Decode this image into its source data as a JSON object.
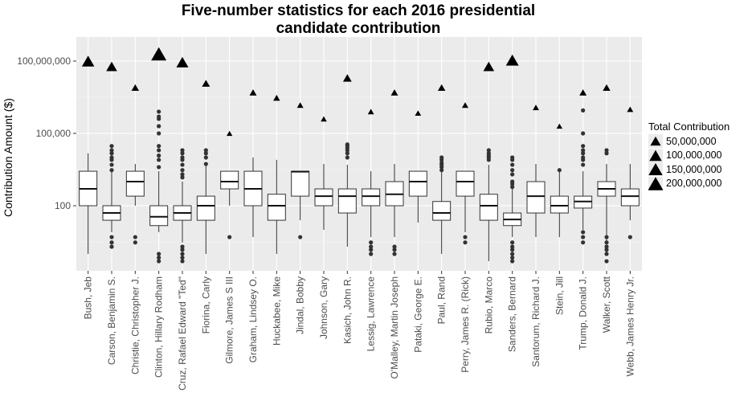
{
  "chart_data": {
    "type": "box",
    "title_line1": "Five-number statistics for each 2016 presidential",
    "title_line2": "candidate contribution",
    "xlabel": "",
    "ylabel": "Contribution Amount ($)",
    "y_scale": "log10",
    "y_ticks": [
      100,
      100000,
      100000000
    ],
    "y_tick_labels": [
      "100",
      "100,000",
      "100,000,000"
    ],
    "ylim": [
      0.2,
      1000000000
    ],
    "legend": {
      "title": "Total Contribution",
      "placement": "right",
      "entries": [
        {
          "label": "50,000,000",
          "value": 50000000
        },
        {
          "label": "100,000,000",
          "value": 100000000
        },
        {
          "label": "150,000,000",
          "value": 150000000
        },
        {
          "label": "200,000,000",
          "value": 200000000
        }
      ]
    },
    "candidates": [
      {
        "name": "Bush, Jeb",
        "min": 1,
        "q1": 100,
        "median": 500,
        "q3": 2700,
        "max": 15000,
        "outliers": [],
        "total": 100000000
      },
      {
        "name": "Carson, Benjamin S.",
        "min": 8,
        "q1": 25,
        "median": 50,
        "q3": 100,
        "max": 2700,
        "outliers": [
          2,
          3,
          5,
          3000,
          5000,
          8000,
          10000,
          15000,
          20000,
          30000
        ],
        "total": 60000000
      },
      {
        "name": "Christie, Christopher J.",
        "min": 100,
        "q1": 250,
        "median": 1000,
        "q3": 2700,
        "max": 5400,
        "outliers": [
          3,
          5
        ],
        "total": 8000000
      },
      {
        "name": "Clinton, Hillary Rodham",
        "min": 8,
        "q1": 15,
        "median": 35,
        "q3": 100,
        "max": 2700,
        "outliers": [
          0.5,
          0.7,
          1,
          4000,
          8000,
          12000,
          20000,
          30000,
          100000,
          200000,
          400000,
          500000,
          800000
        ],
        "total": 200000000
      },
      {
        "name": "Cruz, Rafael Edward \"Ted\"",
        "min": 3,
        "q1": 25,
        "median": 50,
        "q3": 100,
        "max": 1000,
        "outliers": [
          0.5,
          0.7,
          1,
          1.5,
          2,
          1500,
          2000,
          3000,
          5000,
          8000,
          10000,
          15000,
          20000
        ],
        "total": 90000000
      },
      {
        "name": "Fiorina, Carly",
        "min": 1,
        "q1": 25,
        "median": 100,
        "q3": 250,
        "max": 5000,
        "outliers": [
          5400,
          10000,
          15000,
          20000
        ],
        "total": 12000000
      },
      {
        "name": "Gilmore, James S III",
        "min": 100,
        "q1": 500,
        "median": 1000,
        "q3": 2700,
        "max": 2700,
        "outliers": [
          5
        ],
        "total": 100000
      },
      {
        "name": "Graham, Lindsey O.",
        "min": 5,
        "q1": 100,
        "median": 500,
        "q3": 2700,
        "max": 10000,
        "outliers": [],
        "total": 5000000
      },
      {
        "name": "Huckabee, Mike",
        "min": 1,
        "q1": 25,
        "median": 100,
        "q3": 300,
        "max": 8000,
        "outliers": [],
        "total": 3000000
      },
      {
        "name": "Jindal, Bobby",
        "min": 25,
        "q1": 250,
        "median": 2600,
        "q3": 2700,
        "max": 2700,
        "outliers": [
          5
        ],
        "total": 1500000
      },
      {
        "name": "Johnson, Gary",
        "min": 10,
        "q1": 100,
        "median": 250,
        "q3": 500,
        "max": 5400,
        "outliers": [],
        "total": 400000
      },
      {
        "name": "Kasich, John R.",
        "min": 2,
        "q1": 50,
        "median": 250,
        "q3": 500,
        "max": 5000,
        "outliers": [
          10000,
          15000,
          20000,
          25000,
          30000,
          35000
        ],
        "total": 20000000
      },
      {
        "name": "Lessig, Lawrence",
        "min": 5,
        "q1": 100,
        "median": 250,
        "q3": 500,
        "max": 2700,
        "outliers": [
          1,
          1.5,
          2,
          3
        ],
        "total": 800000
      },
      {
        "name": "O'Malley, Martin Joseph",
        "min": 5,
        "q1": 100,
        "median": 300,
        "q3": 1000,
        "max": 5400,
        "outliers": [
          1,
          1.5,
          2
        ],
        "total": 5000000
      },
      {
        "name": "Pataki, George E.",
        "min": 20,
        "q1": 250,
        "median": 1000,
        "q3": 2700,
        "max": 2700,
        "outliers": [],
        "total": 700000
      },
      {
        "name": "Paul, Rand",
        "min": 1,
        "q1": 25,
        "median": 50,
        "q3": 150,
        "max": 2700,
        "outliers": [
          3000,
          4000,
          5000,
          6000,
          8000,
          10000
        ],
        "total": 8000000
      },
      {
        "name": "Perry, James R. (Rick)",
        "min": 8,
        "q1": 250,
        "median": 1000,
        "q3": 2700,
        "max": 2700,
        "outliers": [
          3,
          5
        ],
        "total": 1500000
      },
      {
        "name": "Rubio, Marco",
        "min": 0.5,
        "q1": 25,
        "median": 100,
        "q3": 300,
        "max": 5000,
        "outliers": [
          8000,
          10000,
          12000,
          15000,
          20000
        ],
        "total": 60000000
      },
      {
        "name": "Sanders, Bernard",
        "min": 5,
        "q1": 15,
        "median": 27,
        "q3": 50,
        "max": 500,
        "outliers": [
          0.5,
          0.7,
          1,
          1.5,
          2,
          3,
          600,
          800,
          1000,
          2000,
          3000,
          5000,
          8000,
          10000
        ],
        "total": 110000000
      },
      {
        "name": "Santorum, Richard J.",
        "min": 5,
        "q1": 50,
        "median": 250,
        "q3": 1000,
        "max": 5400,
        "outliers": [],
        "total": 1200000
      },
      {
        "name": "Stein, Jill",
        "min": 5,
        "q1": 50,
        "median": 100,
        "q3": 250,
        "max": 2700,
        "outliers": [
          3000
        ],
        "total": 200000
      },
      {
        "name": "Trump, Donald J.",
        "min": 10,
        "q1": 80,
        "median": 150,
        "q3": 250,
        "max": 2700,
        "outliers": [
          3,
          5,
          8,
          5000,
          8000,
          10000,
          15000,
          20000,
          30000,
          100000,
          900000
        ],
        "total": 5000000
      },
      {
        "name": "Walker, Scott",
        "min": 1,
        "q1": 250,
        "median": 500,
        "q3": 1000,
        "max": 5400,
        "outliers": [
          0.5,
          1,
          1.5,
          2,
          3,
          5,
          15000,
          20000
        ],
        "total": 8000000
      },
      {
        "name": "Webb, James Henry Jr.",
        "min": 25,
        "q1": 100,
        "median": 250,
        "q3": 500,
        "max": 5400,
        "outliers": [
          5
        ],
        "total": 1000000
      }
    ]
  }
}
